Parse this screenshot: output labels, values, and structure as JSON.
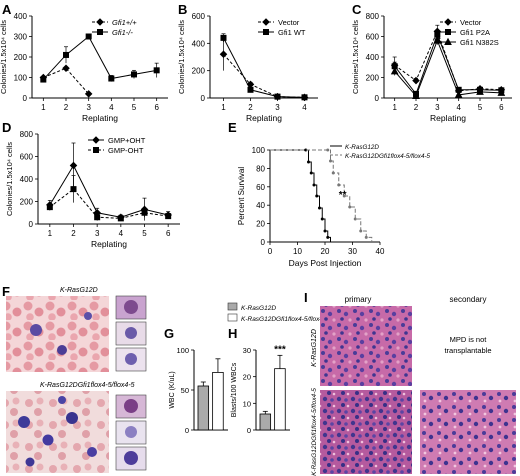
{
  "panel_letters": [
    "A",
    "B",
    "C",
    "D",
    "E",
    "F",
    "G",
    "H",
    "I"
  ],
  "chart_data": [
    {
      "panel": "A",
      "type": "line",
      "xlabel": "Replating",
      "ylabel": "Colonies/1.5x10⁴ cells",
      "x": [
        1,
        2,
        3,
        4,
        5,
        6
      ],
      "ylim": [
        0,
        400
      ],
      "yticks": [
        0,
        100,
        200,
        300,
        400
      ],
      "series": [
        {
          "name": "Gfi1+/+",
          "style": "dashed",
          "marker": "diamond",
          "x": [
            1,
            2,
            3
          ],
          "values": [
            100,
            145,
            20
          ]
        },
        {
          "name": "Gfi1-/-",
          "style": "solid",
          "marker": "square",
          "x": [
            1,
            2,
            3,
            4,
            5,
            6
          ],
          "values": [
            90,
            210,
            300,
            95,
            115,
            135
          ],
          "err": [
            10,
            40,
            10,
            15,
            20,
            35
          ]
        }
      ]
    },
    {
      "panel": "B",
      "type": "line",
      "xlabel": "Replating",
      "ylabel": "Colonies/1.5x10⁴ cells",
      "x": [
        1,
        2,
        3,
        4
      ],
      "ylim": [
        0,
        600
      ],
      "yticks": [
        0,
        200,
        400,
        600
      ],
      "series": [
        {
          "name": "Vector",
          "style": "dashed",
          "marker": "diamond",
          "x": [
            1,
            2,
            3,
            4
          ],
          "values": [
            320,
            100,
            10,
            5
          ],
          "err": [
            120,
            15,
            5,
            3
          ]
        },
        {
          "name": "Gfi1 WT",
          "style": "solid",
          "marker": "square",
          "x": [
            1,
            2,
            3,
            4
          ],
          "values": [
            440,
            60,
            10,
            5
          ],
          "err": [
            30,
            10,
            5,
            3
          ]
        }
      ]
    },
    {
      "panel": "C",
      "type": "line",
      "xlabel": "Replating",
      "ylabel": "Colonies/1.5x10⁴ cells",
      "x": [
        1,
        2,
        3,
        4,
        5,
        6
      ],
      "ylim": [
        0,
        800
      ],
      "yticks": [
        0,
        200,
        400,
        600,
        800
      ],
      "series": [
        {
          "name": "Vector",
          "style": "dashed",
          "marker": "diamond",
          "x": [
            1,
            2,
            3,
            4,
            5,
            6
          ],
          "values": [
            320,
            170,
            650,
            70,
            90,
            80
          ],
          "err": [
            80,
            20,
            60,
            10,
            10,
            10
          ]
        },
        {
          "name": "Gfi1 P2A",
          "style": "solid",
          "marker": "square",
          "x": [
            1,
            2,
            3,
            4,
            5,
            6
          ],
          "values": [
            310,
            40,
            620,
            80,
            80,
            75
          ],
          "err": [
            40,
            10,
            40,
            10,
            10,
            10
          ]
        },
        {
          "name": "Gfi1 N382S",
          "style": "solid",
          "marker": "triangle",
          "x": [
            1,
            2,
            3,
            4,
            5,
            6
          ],
          "values": [
            260,
            20,
            560,
            30,
            60,
            50
          ],
          "err": [
            40,
            5,
            40,
            5,
            10,
            10
          ]
        }
      ]
    },
    {
      "panel": "D",
      "type": "line",
      "xlabel": "Replating",
      "ylabel": "Colonies/1.5x10⁴ cells",
      "x": [
        1,
        2,
        3,
        4,
        5,
        6
      ],
      "ylim": [
        0,
        800
      ],
      "yticks": [
        0,
        200,
        400,
        600,
        800
      ],
      "series": [
        {
          "name": "GMP+OHT",
          "style": "solid",
          "marker": "diamond",
          "x": [
            1,
            2,
            3,
            4,
            5,
            6
          ],
          "values": [
            170,
            520,
            100,
            60,
            130,
            80
          ],
          "err": [
            40,
            200,
            40,
            20,
            100,
            30
          ]
        },
        {
          "name": "GMP-OHT",
          "style": "dashed",
          "marker": "square",
          "x": [
            1,
            2,
            3,
            4,
            5,
            6
          ],
          "values": [
            150,
            310,
            60,
            50,
            100,
            70
          ],
          "err": [
            30,
            120,
            30,
            20,
            40,
            20
          ]
        }
      ]
    },
    {
      "panel": "E",
      "type": "line",
      "subtype": "survival",
      "xlabel": "Days Post Injection",
      "ylabel": "Percent Survival",
      "xlim": [
        0,
        40
      ],
      "xticks": [
        0,
        10,
        20,
        30,
        40
      ],
      "ylim": [
        0,
        100
      ],
      "yticks": [
        0,
        20,
        40,
        60,
        80,
        100
      ],
      "annotation": "**",
      "series": [
        {
          "name": "K-RasG12D",
          "style": "solid",
          "x": [
            0,
            13,
            14,
            15,
            16,
            17,
            18,
            19,
            20,
            21,
            22
          ],
          "values": [
            100,
            100,
            87,
            75,
            62,
            50,
            37,
            25,
            12,
            5,
            0
          ]
        },
        {
          "name": "K-RasG12DGfi1flox4-5/flox4-5",
          "style": "dashed",
          "x": [
            0,
            21,
            22,
            23,
            25,
            27,
            29,
            31,
            33,
            35,
            37
          ],
          "values": [
            100,
            100,
            88,
            75,
            62,
            50,
            38,
            25,
            12,
            5,
            0
          ]
        }
      ]
    },
    {
      "panel": "G",
      "type": "bar",
      "ylabel": "WBC (K/uL)",
      "ylim": [
        0,
        100
      ],
      "yticks": [
        0,
        50,
        100
      ],
      "categories": [
        "K-RasG12D",
        "K-RasG12DGfi1flox4-5/flox4-5"
      ],
      "values": [
        55,
        72
      ],
      "err": [
        5,
        17
      ],
      "colors": [
        "#aaaaaa",
        "#ffffff"
      ]
    },
    {
      "panel": "H",
      "type": "bar",
      "ylabel": "Blasts/100 WBCs",
      "ylim": [
        0,
        30
      ],
      "yticks": [
        0,
        10,
        20,
        30
      ],
      "categories": [
        "K-RasG12D",
        "K-RasG12DGfi1flox4-5/flox4-5"
      ],
      "values": [
        6,
        23
      ],
      "err": [
        1,
        5
      ],
      "colors": [
        "#aaaaaa",
        "#ffffff"
      ],
      "annotation": "***"
    }
  ],
  "panel_f": {
    "label_top": "K-RasG12D",
    "label_bottom": "K-RasG12DGfi1flox4-5/flox4-5"
  },
  "panel_i": {
    "col_primary": "primary",
    "col_secondary": "secondary",
    "row_top_label": "K-RasG12D",
    "row_bottom_label": "K-RasG12DGfi1flox4-5/flox4-5",
    "note_line1": "MPD is not",
    "note_line2": "transplantable"
  }
}
